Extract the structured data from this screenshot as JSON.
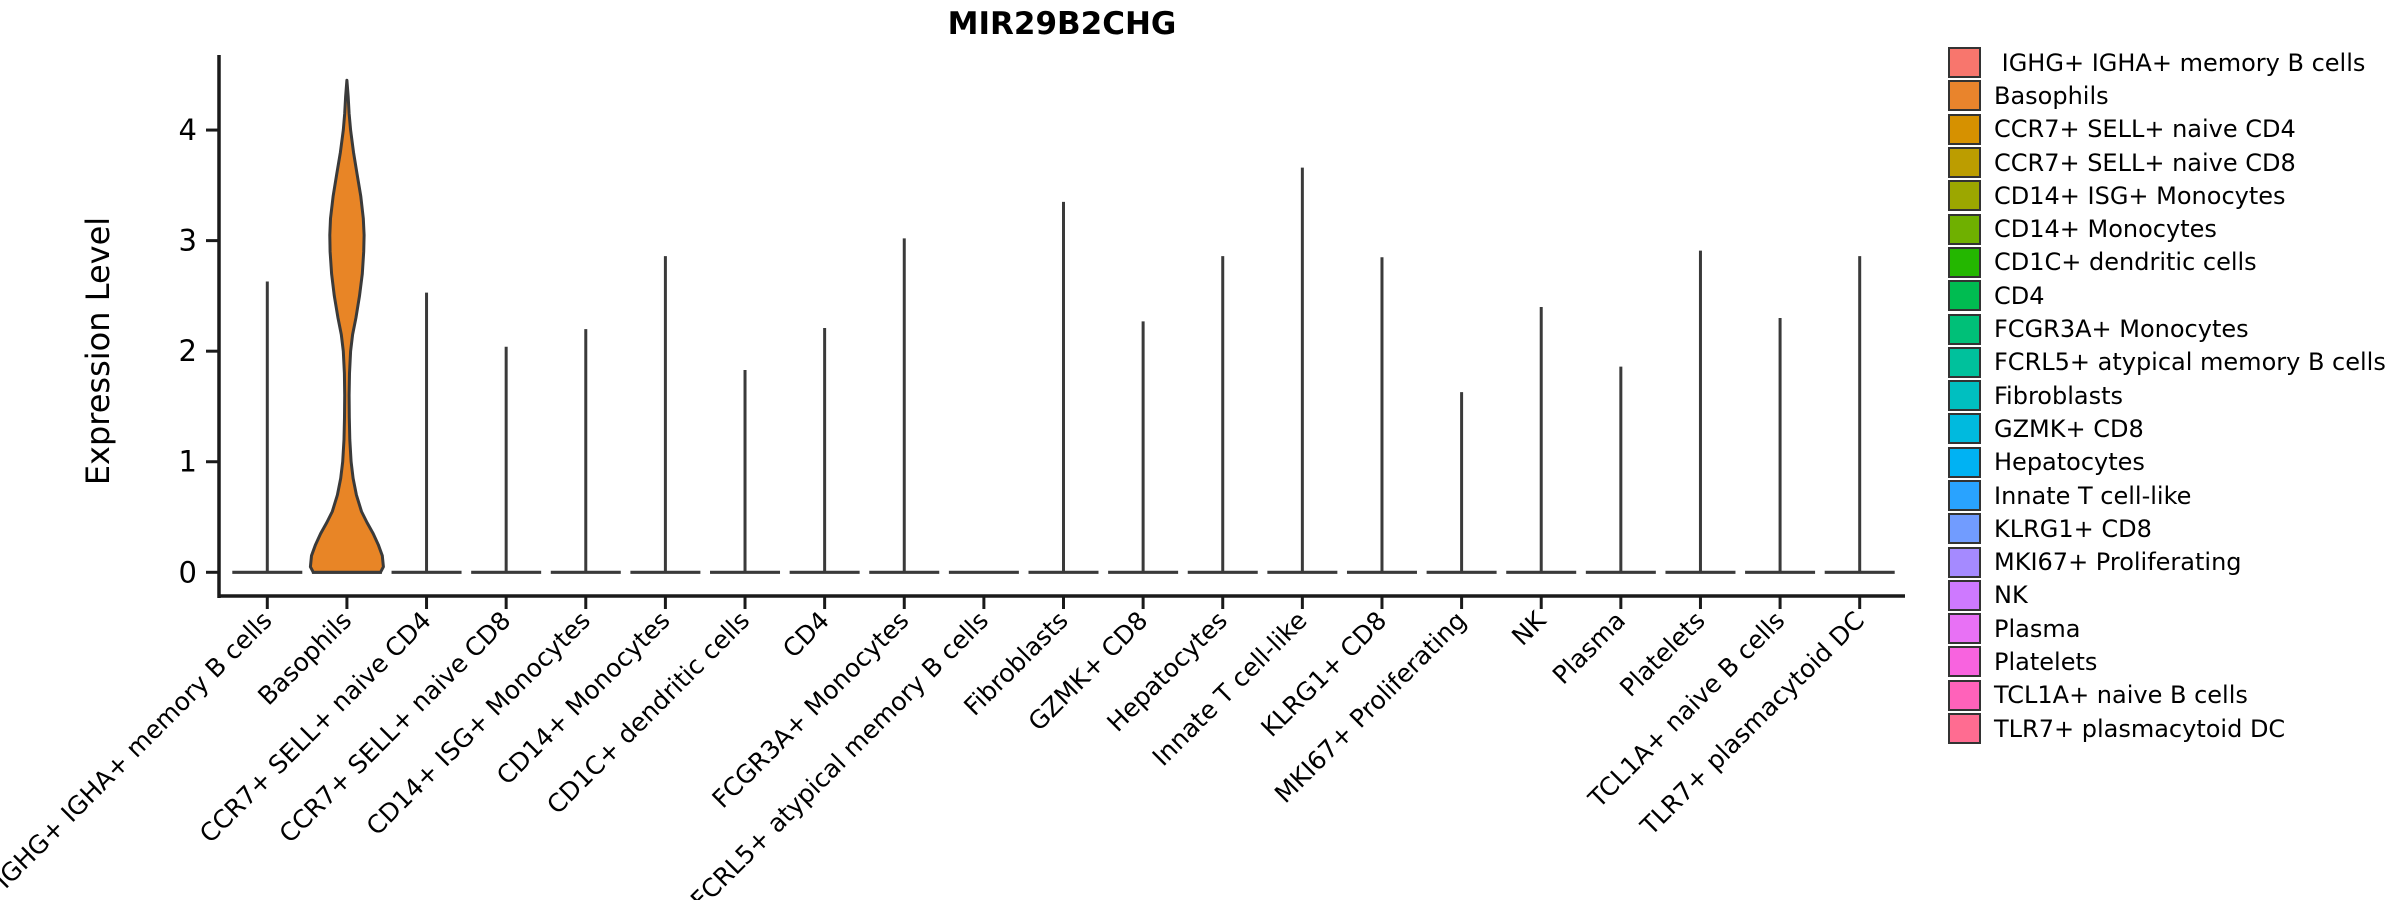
{
  "title": "MIR29B2CHG",
  "y_axis": {
    "label": "Expression Level"
  },
  "chart_data": {
    "type": "violin",
    "title": "MIR29B2CHG",
    "xlabel": "",
    "ylabel": "Expression Level",
    "ylim": [
      0,
      4.72
    ],
    "y_ticks": [
      0,
      1,
      2,
      3,
      4
    ],
    "grid": false,
    "legend_position": "right",
    "categories": [
      "IGHG+ IGHA+ memory B cells",
      "Basophils",
      "CCR7+ SELL+ naive CD4",
      "CCR7+ SELL+ naive CD8",
      "CD14+ ISG+ Monocytes",
      "CD14+ Monocytes",
      "CD1C+ dendritic cells",
      "CD4",
      "FCGR3A+ Monocytes",
      "FCRL5+ atypical memory B cells",
      "Fibroblasts",
      "GZMK+ CD8",
      "Hepatocytes",
      "Innate T cell-like",
      "KLRG1+ CD8",
      "MKI67+ Proliferating",
      "NK",
      "Plasma",
      "Platelets",
      "TCL1A+ naive B cells",
      "TLR7+ plasmacytoid DC"
    ],
    "series": [
      {
        "name": "peak_expression_level",
        "values": [
          2.63,
          4.45,
          2.53,
          2.04,
          2.2,
          2.86,
          1.83,
          2.21,
          3.02,
          0,
          3.35,
          2.27,
          2.86,
          3.66,
          2.85,
          1.63,
          2.4,
          1.86,
          2.91,
          2.3,
          2.86
        ]
      }
    ],
    "colors": [
      "#F8766D",
      "#E9842C",
      "#D69100",
      "#BC9D00",
      "#9CA700",
      "#6FB000",
      "#24B700",
      "#00BC51",
      "#00C078",
      "#00C19C",
      "#00BFC0",
      "#00BADE",
      "#00B2F3",
      "#29A3FF",
      "#719CFF",
      "#A58AFF",
      "#CE79FF",
      "#E871F5",
      "#F863DF",
      "#FF62BA",
      "#FF6C91"
    ],
    "filled_violin": {
      "category": "Basophils",
      "fill": "#E88526",
      "density_profile": [
        [
          0.0,
          0.92
        ],
        [
          0.05,
          1.0
        ],
        [
          0.15,
          0.97
        ],
        [
          0.25,
          0.86
        ],
        [
          0.35,
          0.72
        ],
        [
          0.45,
          0.55
        ],
        [
          0.55,
          0.4
        ],
        [
          0.7,
          0.26
        ],
        [
          0.85,
          0.17
        ],
        [
          1.0,
          0.115
        ],
        [
          1.2,
          0.08
        ],
        [
          1.4,
          0.065
        ],
        [
          1.6,
          0.06
        ],
        [
          1.8,
          0.07
        ],
        [
          2.0,
          0.1
        ],
        [
          2.15,
          0.155
        ],
        [
          2.3,
          0.245
        ],
        [
          2.5,
          0.345
        ],
        [
          2.7,
          0.42
        ],
        [
          2.9,
          0.46
        ],
        [
          3.05,
          0.47
        ],
        [
          3.2,
          0.45
        ],
        [
          3.4,
          0.38
        ],
        [
          3.6,
          0.28
        ],
        [
          3.8,
          0.18
        ],
        [
          4.0,
          0.1
        ],
        [
          4.15,
          0.06
        ],
        [
          4.3,
          0.035
        ],
        [
          4.45,
          0.0
        ]
      ]
    },
    "violin_stroke": "#3A3A3A",
    "axis_color": "#1A1A1A"
  },
  "legend": {
    "items": [
      {
        "label": " IGHG+ IGHA+ memory B cells",
        "color": "#F8766D"
      },
      {
        "label": "Basophils",
        "color": "#E9842C"
      },
      {
        "label": "CCR7+ SELL+ naive CD4",
        "color": "#D69100"
      },
      {
        "label": "CCR7+ SELL+ naive CD8",
        "color": "#BC9D00"
      },
      {
        "label": "CD14+ ISG+ Monocytes",
        "color": "#9CA700"
      },
      {
        "label": "CD14+ Monocytes",
        "color": "#6FB000"
      },
      {
        "label": "CD1C+ dendritic cells",
        "color": "#24B700"
      },
      {
        "label": "CD4",
        "color": "#00BC51"
      },
      {
        "label": "FCGR3A+ Monocytes",
        "color": "#00C078"
      },
      {
        "label": "FCRL5+ atypical memory B cells",
        "color": "#00C19C"
      },
      {
        "label": "Fibroblasts",
        "color": "#00BFC0"
      },
      {
        "label": "GZMK+ CD8",
        "color": "#00BADE"
      },
      {
        "label": "Hepatocytes",
        "color": "#00B2F3"
      },
      {
        "label": "Innate T cell-like",
        "color": "#29A3FF"
      },
      {
        "label": "KLRG1+ CD8",
        "color": "#719CFF"
      },
      {
        "label": "MKI67+ Proliferating",
        "color": "#A58AFF"
      },
      {
        "label": "NK",
        "color": "#CE79FF"
      },
      {
        "label": "Plasma",
        "color": "#E871F5"
      },
      {
        "label": "Platelets",
        "color": "#F863DF"
      },
      {
        "label": "TCL1A+ naive B cells",
        "color": "#FF62BA"
      },
      {
        "label": "TLR7+ plasmacytoid DC",
        "color": "#FF6C91"
      }
    ]
  }
}
